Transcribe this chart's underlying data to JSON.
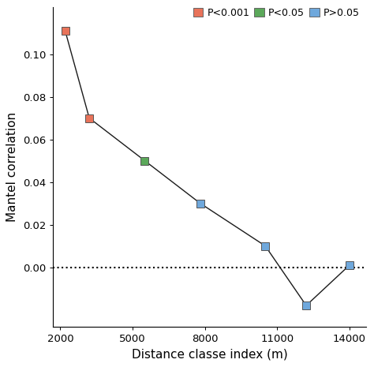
{
  "x": [
    2200,
    3200,
    5500,
    7800,
    10500,
    12200,
    14000
  ],
  "y": [
    0.111,
    0.07,
    0.05,
    0.03,
    0.01,
    -0.018,
    0.001
  ],
  "colors": [
    "#E8735A",
    "#E8735A",
    "#5BA85A",
    "#6FA8DC",
    "#6FA8DC",
    "#6FA8DC",
    "#6FA8DC"
  ],
  "legend_labels": [
    "P<0.001",
    "P<0.05",
    "P>0.05"
  ],
  "legend_colors": [
    "#E8735A",
    "#5BA85A",
    "#6FA8DC"
  ],
  "xlabel": "Distance classe index (m)",
  "ylabel": "Mantel correlation",
  "xlim": [
    1700,
    14700
  ],
  "ylim": [
    -0.028,
    0.122
  ],
  "xticks": [
    2000,
    5000,
    8000,
    11000,
    14000
  ],
  "yticks": [
    0.0,
    0.02,
    0.04,
    0.06,
    0.08,
    0.1
  ],
  "background_color": "#ffffff",
  "marker_size": 7,
  "line_color": "#1a1a1a",
  "dotted_line_y": 0.0,
  "figsize": [
    4.74,
    4.65
  ],
  "dpi": 100
}
